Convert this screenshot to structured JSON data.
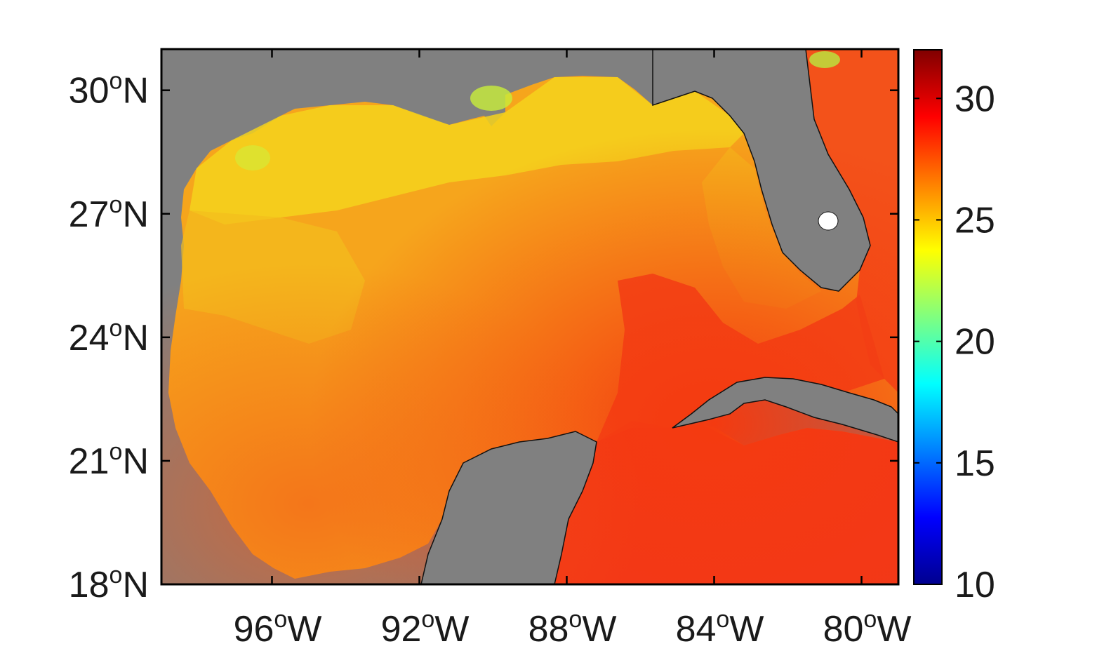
{
  "map": {
    "lon_range": [
      -99,
      -79
    ],
    "lat_range": [
      18,
      31
    ],
    "land_color": "#808080",
    "lat_ticks": [
      {
        "value": 30,
        "number": "30",
        "degree": "o",
        "hemisphere": "N"
      },
      {
        "value": 27,
        "number": "27",
        "degree": "o",
        "hemisphere": "N"
      },
      {
        "value": 24,
        "number": "24",
        "degree": "o",
        "hemisphere": "N"
      },
      {
        "value": 21,
        "number": "21",
        "degree": "o",
        "hemisphere": "N"
      },
      {
        "value": 18,
        "number": "18",
        "degree": "o",
        "hemisphere": "N"
      }
    ],
    "lon_ticks": [
      {
        "value": -96,
        "number": "96",
        "degree": "o",
        "hemisphere": "W"
      },
      {
        "value": -92,
        "number": "92",
        "degree": "o",
        "hemisphere": "W"
      },
      {
        "value": -88,
        "number": "88",
        "degree": "o",
        "hemisphere": "W"
      },
      {
        "value": -84,
        "number": "84",
        "degree": "o",
        "hemisphere": "W"
      },
      {
        "value": -80,
        "number": "80",
        "degree": "o",
        "hemisphere": "W"
      }
    ]
  },
  "colorbar": {
    "range": [
      10,
      32
    ],
    "colormap": "jet",
    "ticks": [
      {
        "value": 30,
        "label": "30"
      },
      {
        "value": 25,
        "label": "25"
      },
      {
        "value": 20,
        "label": "20"
      },
      {
        "value": 15,
        "label": "15"
      },
      {
        "value": 10,
        "label": "10"
      }
    ]
  }
}
